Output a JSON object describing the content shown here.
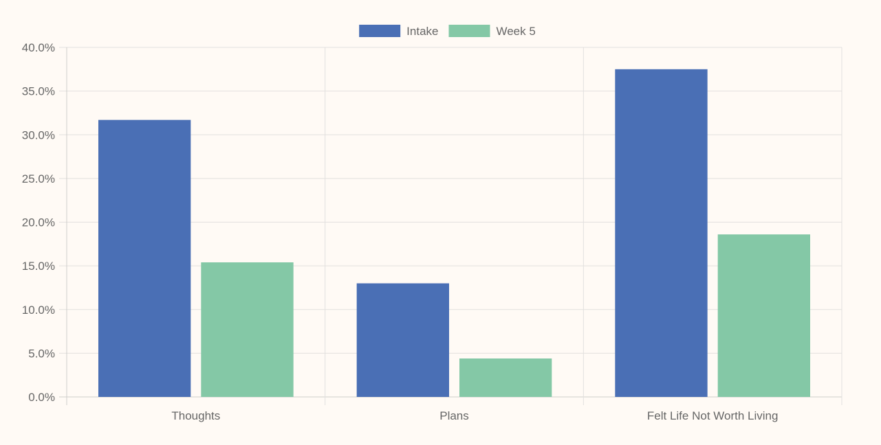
{
  "chart_data": {
    "type": "bar",
    "title": "",
    "xlabel": "",
    "ylabel": "",
    "categories": [
      "Thoughts",
      "Plans",
      "Felt Life Not Worth Living"
    ],
    "series": [
      {
        "name": "Intake",
        "values": [
          31.7,
          13.0,
          37.5
        ],
        "color": "#4a6fb5"
      },
      {
        "name": "Week 5",
        "values": [
          15.4,
          4.4,
          18.6
        ],
        "color": "#84c8a6"
      }
    ],
    "ylim": [
      0,
      40
    ],
    "yticks": [
      0,
      5,
      10,
      15,
      20,
      25,
      30,
      35,
      40
    ],
    "ytick_labels": [
      "0.0%",
      "5.0%",
      "10.0%",
      "15.0%",
      "20.0%",
      "25.0%",
      "30.0%",
      "35.0%",
      "40.0%"
    ],
    "grid": true,
    "legend_position": "top-center"
  },
  "colors": {
    "background": "#fffaf5",
    "grid": "#e2e0de",
    "axis": "#cfcdcb",
    "text": "#666666"
  }
}
